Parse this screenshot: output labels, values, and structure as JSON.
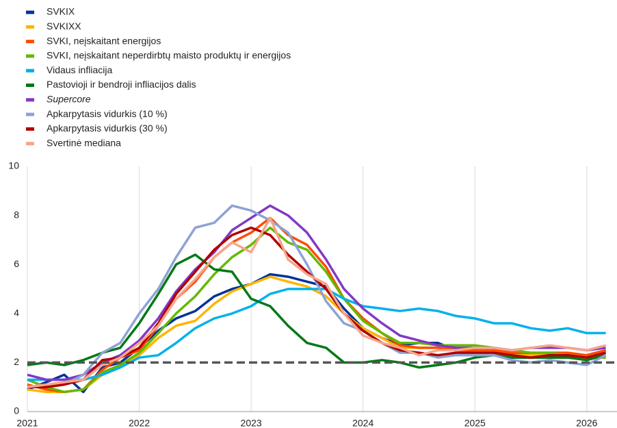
{
  "chart_data": {
    "type": "line",
    "x": [
      2021,
      2021.17,
      2021.33,
      2021.5,
      2021.67,
      2021.83,
      2022,
      2022.17,
      2022.33,
      2022.5,
      2022.67,
      2022.83,
      2023,
      2023.17,
      2023.33,
      2023.5,
      2023.67,
      2023.83,
      2024,
      2024.17,
      2024.33,
      2024.5,
      2024.67,
      2024.83,
      2025,
      2025.17,
      2025.33,
      2025.5,
      2025.67,
      2025.83,
      2026,
      2026.17
    ],
    "xlim": [
      2021,
      2026.27
    ],
    "xticks": [
      2021,
      2022,
      2023,
      2024,
      2025,
      2026
    ],
    "ylim": [
      0,
      10
    ],
    "yticks": [
      0,
      2,
      4,
      6,
      8,
      10
    ],
    "grid": "x",
    "reference_line": 2,
    "legend": "top-left",
    "series": [
      {
        "name": "SVKIX",
        "color": "#003299",
        "values": [
          0.9,
          1.2,
          1.5,
          0.8,
          1.8,
          2.0,
          2.6,
          3.3,
          3.8,
          4.1,
          4.7,
          5.0,
          5.2,
          5.6,
          5.5,
          5.3,
          5.1,
          4.2,
          3.4,
          3.0,
          2.7,
          2.8,
          2.8,
          2.5,
          2.5,
          2.4,
          2.4,
          2.3,
          2.3,
          2.2,
          2.3,
          2.5
        ]
      },
      {
        "name": "SVKIXX",
        "color": "#ffb400",
        "values": [
          0.9,
          0.8,
          0.8,
          0.9,
          1.5,
          1.9,
          2.3,
          3.0,
          3.5,
          3.7,
          4.4,
          4.9,
          5.2,
          5.5,
          5.3,
          5.1,
          4.7,
          4.0,
          3.4,
          3.0,
          2.6,
          2.6,
          2.6,
          2.5,
          2.5,
          2.4,
          2.3,
          2.3,
          2.4,
          2.3,
          2.3,
          2.4
        ]
      },
      {
        "name": "SVKI, neįskaitant energijos",
        "color": "#ff4b00",
        "values": [
          1.1,
          0.9,
          0.8,
          0.9,
          1.7,
          2.2,
          2.5,
          3.5,
          4.6,
          5.3,
          6.3,
          6.9,
          7.3,
          7.9,
          7.2,
          6.8,
          5.9,
          4.6,
          3.8,
          3.2,
          2.7,
          2.6,
          2.6,
          2.5,
          2.5,
          2.5,
          2.4,
          2.4,
          2.4,
          2.4,
          2.3,
          2.5
        ]
      },
      {
        "name": "SVKI, neįskaitant neperdirbtų maisto produktų ir energijos",
        "color": "#65b800",
        "values": [
          1.3,
          1.0,
          0.8,
          0.9,
          1.6,
          1.9,
          2.4,
          3.2,
          4.0,
          4.7,
          5.6,
          6.3,
          6.8,
          7.5,
          6.9,
          6.6,
          5.7,
          4.6,
          3.7,
          3.2,
          2.8,
          2.8,
          2.7,
          2.7,
          2.7,
          2.6,
          2.5,
          2.4,
          2.4,
          2.3,
          2.2,
          2.2
        ]
      },
      {
        "name": "Vidaus infliacija",
        "color": "#00b1ea",
        "values": [
          1.3,
          1.3,
          1.3,
          1.3,
          1.5,
          1.8,
          2.2,
          2.3,
          2.8,
          3.4,
          3.8,
          4.0,
          4.3,
          4.8,
          5.0,
          5.0,
          5.0,
          4.6,
          4.3,
          4.2,
          4.1,
          4.2,
          4.1,
          3.9,
          3.8,
          3.6,
          3.6,
          3.4,
          3.3,
          3.4,
          3.2,
          3.2
        ]
      },
      {
        "name": "Pastovioji ir bendroji infliacijos dalis",
        "color": "#007816",
        "values": [
          1.9,
          2.0,
          1.9,
          2.1,
          2.4,
          2.6,
          3.6,
          4.8,
          6.0,
          6.4,
          5.8,
          5.7,
          4.6,
          4.3,
          3.5,
          2.8,
          2.6,
          2.0,
          2.0,
          2.1,
          2.0,
          1.8,
          1.9,
          2.0,
          2.2,
          2.3,
          2.2,
          2.2,
          2.2,
          2.2,
          2.1,
          2.3
        ]
      },
      {
        "name": "Supercore",
        "name_style": "italic",
        "color": "#8139c6",
        "values": [
          1.5,
          1.3,
          1.3,
          1.5,
          2.0,
          2.3,
          2.9,
          3.8,
          4.9,
          5.8,
          6.5,
          7.4,
          7.9,
          8.4,
          8.0,
          7.3,
          6.2,
          5.0,
          4.2,
          3.6,
          3.1,
          2.9,
          2.7,
          2.6,
          2.6,
          2.6,
          2.5,
          2.6,
          2.6,
          2.6,
          2.5,
          2.6
        ]
      },
      {
        "name": "Apkarpytasis vidurkis (10 %)",
        "color": "#8ea3d4",
        "values": [
          1.0,
          1.0,
          1.1,
          1.5,
          2.4,
          2.8,
          4.0,
          5.0,
          6.3,
          7.5,
          7.7,
          8.4,
          8.2,
          7.8,
          7.3,
          6.0,
          4.5,
          3.6,
          3.3,
          2.8,
          2.4,
          2.4,
          2.2,
          2.3,
          2.3,
          2.3,
          2.1,
          2.0,
          2.1,
          2.0,
          1.9,
          2.3
        ]
      },
      {
        "name": "Apkarpytasis vidurkis (30 %)",
        "color": "#b00000",
        "values": [
          1.0,
          1.0,
          1.1,
          1.3,
          2.1,
          2.2,
          2.6,
          3.6,
          4.8,
          5.7,
          6.6,
          7.2,
          7.5,
          7.2,
          6.4,
          5.7,
          5.0,
          4.0,
          3.3,
          2.8,
          2.5,
          2.4,
          2.3,
          2.4,
          2.4,
          2.4,
          2.3,
          2.2,
          2.3,
          2.3,
          2.2,
          2.4
        ]
      },
      {
        "name": "Svertinė mediana",
        "color": "#f7a58b",
        "values": [
          1.0,
          1.1,
          1.2,
          1.3,
          1.9,
          2.2,
          2.8,
          3.5,
          4.6,
          5.4,
          6.3,
          6.9,
          6.5,
          7.9,
          6.2,
          5.6,
          5.2,
          4.0,
          3.1,
          2.8,
          2.6,
          2.3,
          2.5,
          2.5,
          2.6,
          2.6,
          2.5,
          2.6,
          2.7,
          2.6,
          2.5,
          2.7
        ]
      }
    ]
  }
}
